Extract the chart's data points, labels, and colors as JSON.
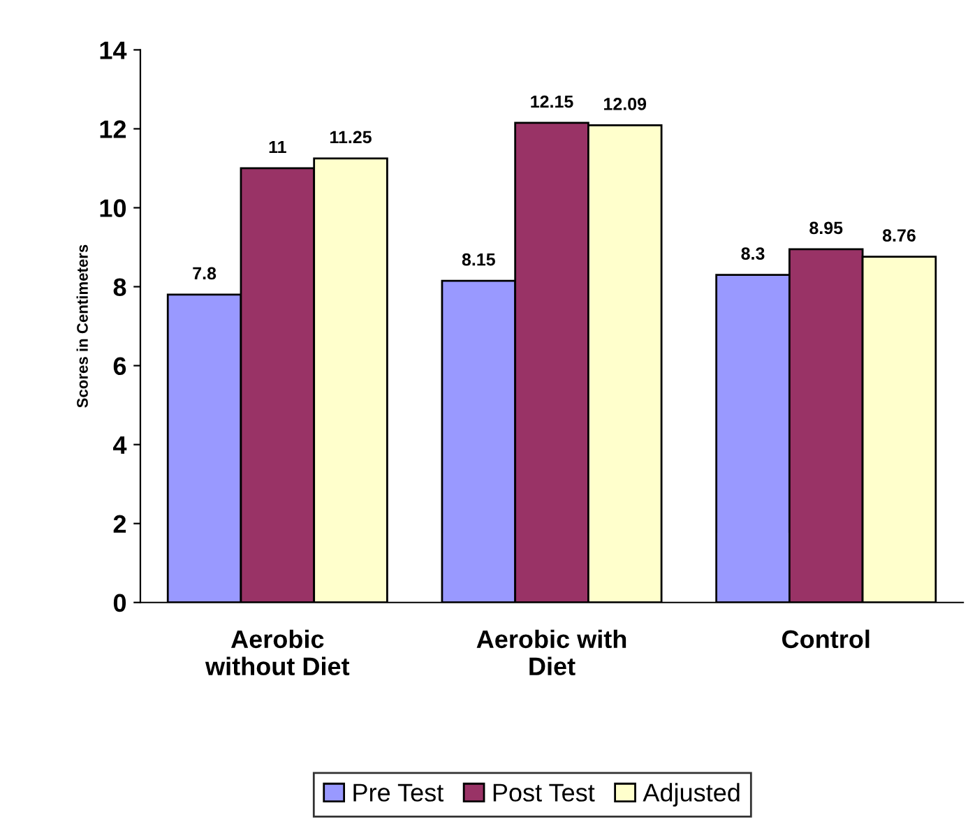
{
  "chart_data": {
    "type": "bar",
    "ylabel": "Scores in Centimeters",
    "categories": [
      "Aerobic\nwithout Diet",
      "Aerobic with\nDiet",
      "Control"
    ],
    "series": [
      {
        "name": "Pre Test",
        "color": "#9999ff",
        "values": [
          7.8,
          8.15,
          8.3
        ]
      },
      {
        "name": "Post Test",
        "color": "#993366",
        "values": [
          11,
          12.15,
          8.95
        ]
      },
      {
        "name": "Adjusted",
        "color": "#ffffcc",
        "values": [
          11.25,
          12.09,
          8.76
        ]
      }
    ],
    "ylim": [
      0,
      14
    ],
    "yticks": [
      0,
      2,
      4,
      6,
      8,
      10,
      12,
      14
    ],
    "grid": false,
    "legend": "bottom",
    "data_labels": true
  }
}
